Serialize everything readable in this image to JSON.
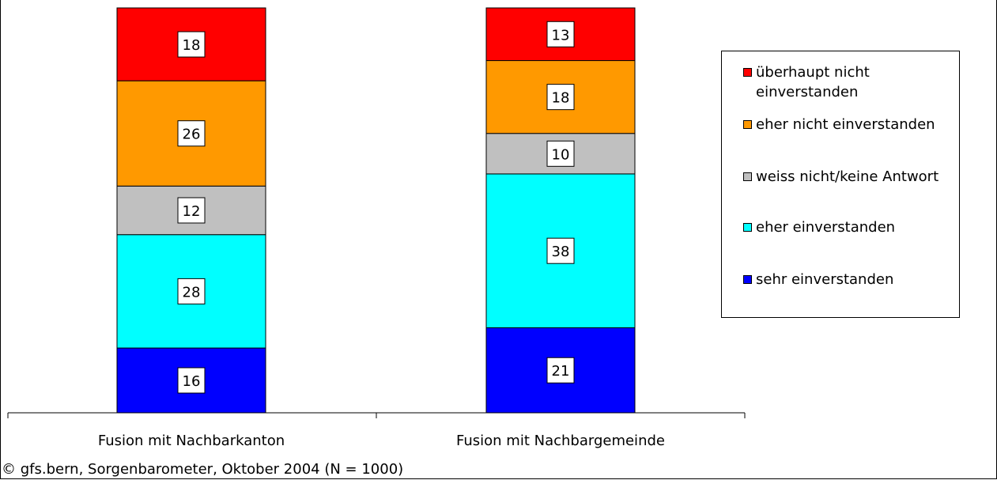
{
  "chart_data": {
    "type": "bar",
    "stacked": true,
    "categories": [
      "Fusion mit Nachbarkanton",
      "Fusion mit Nachbargemeinde"
    ],
    "series": [
      {
        "name": "sehr einverstanden",
        "color": "#0000FF",
        "values": [
          16,
          21
        ]
      },
      {
        "name": "eher einverstanden",
        "color": "#00FFFF",
        "values": [
          28,
          38
        ]
      },
      {
        "name": "weiss nicht/keine Antwort",
        "color": "#C0C0C0",
        "values": [
          12,
          10
        ]
      },
      {
        "name": "eher nicht einverstanden",
        "color": "#FF9900",
        "values": [
          26,
          18
        ]
      },
      {
        "name": "überhaupt nicht einverstanden",
        "color": "#FF0000",
        "values": [
          18,
          13
        ]
      }
    ],
    "legend_order": [
      "überhaupt nicht einverstanden",
      "eher nicht einverstanden",
      "weiss nicht/keine Antwort",
      "eher einverstanden",
      "sehr einverstanden"
    ],
    "legend_position": "right",
    "ylim": [
      0,
      100
    ],
    "grid": false,
    "data_labels": true
  },
  "footer": "© gfs.bern, Sorgenbarometer, Oktober 2004 (N = 1000)"
}
